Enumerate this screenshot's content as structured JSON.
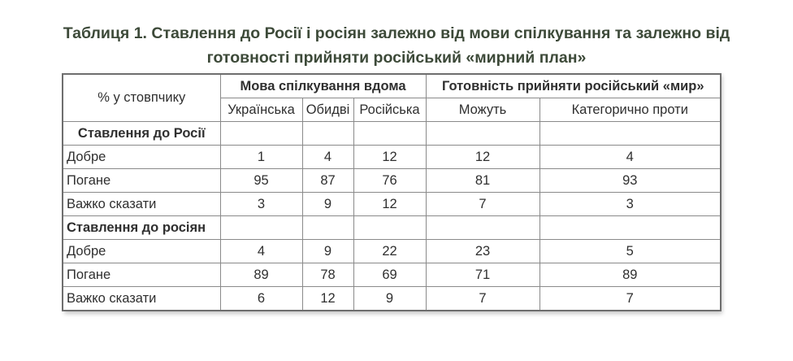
{
  "caption": {
    "line1": "Таблиця 1. Ставлення до Росії і росіян залежно від мови спілкування та залежно від",
    "line2": "готовності прийняти російський «мирний план»"
  },
  "table": {
    "corner_label": "% у стовпчику",
    "group_headers": {
      "language": "Мова спілкування вдома",
      "readiness": "Готовність прийняти російський «мир»"
    },
    "sub_headers": {
      "ukrainian": "Українська",
      "both": "Обидві",
      "russian": "Російська",
      "can": "Можуть",
      "against": "Категорично проти"
    },
    "sections": [
      {
        "title": "Ставлення до Росії",
        "rows": [
          {
            "label": "Добре",
            "values": [
              "1",
              "4",
              "12",
              "12",
              "4"
            ]
          },
          {
            "label": "Погане",
            "values": [
              "95",
              "87",
              "76",
              "81",
              "93"
            ]
          },
          {
            "label": "Важко сказати",
            "values": [
              "3",
              "9",
              "12",
              "7",
              "3"
            ]
          }
        ]
      },
      {
        "title": "Ставлення до росіян",
        "rows": [
          {
            "label": "Добре",
            "values": [
              "4",
              "9",
              "22",
              "23",
              "5"
            ]
          },
          {
            "label": "Погане",
            "values": [
              "89",
              "78",
              "69",
              "71",
              "89"
            ]
          },
          {
            "label": "Важко сказати",
            "values": [
              "6",
              "12",
              "9",
              "7",
              "7"
            ]
          }
        ]
      }
    ]
  }
}
